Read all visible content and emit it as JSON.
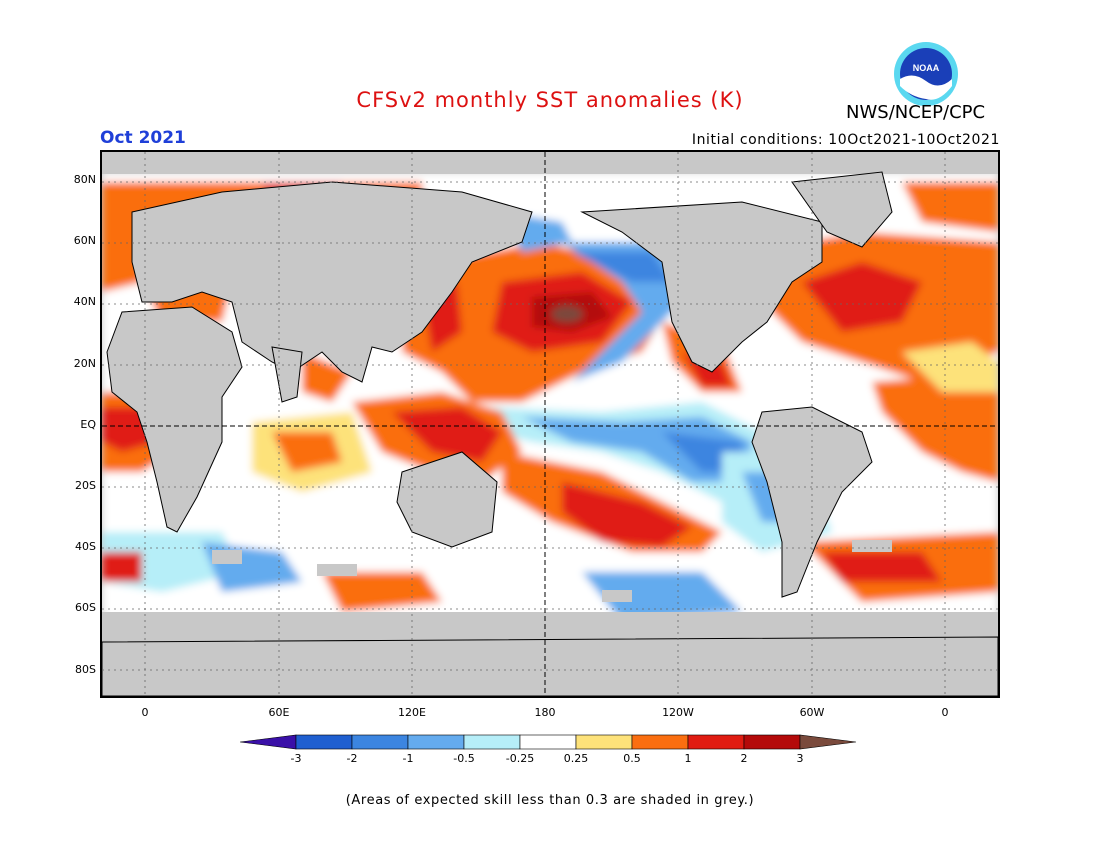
{
  "header": {
    "title": "CFSv2 monthly SST anomalies (K)",
    "month": "Oct 2021",
    "initial_conditions": "Initial conditions: 10Oct2021-10Oct2021",
    "agency": "NWS/NCEP/CPC",
    "logo_text": "NOAA"
  },
  "map": {
    "lat_labels": [
      "80N",
      "60N",
      "40N",
      "20N",
      "EQ",
      "20S",
      "40S",
      "60S",
      "80S"
    ],
    "lon_labels": [
      "0",
      "60E",
      "120E",
      "180",
      "120W",
      "60W",
      "0"
    ]
  },
  "colorbar": {
    "labels": [
      "-3",
      "-2",
      "-1",
      "-0.5",
      "-0.25",
      "0.25",
      "0.5",
      "1",
      "2",
      "3"
    ],
    "colors": [
      "#3a10a8",
      "#1f5fd0",
      "#3c85e0",
      "#64abee",
      "#b6eef8",
      "#ffffff",
      "#fde27a",
      "#fa6e10",
      "#e01c12",
      "#b40a0a",
      "#7a4a3c"
    ]
  },
  "colors": {
    "title": "#dd1111",
    "month": "#1f3fd8",
    "land": "#c8c8c8",
    "low_skill": "#c8c8c8"
  },
  "note": "(Areas of expected skill less than 0.3 are shaded in grey.)"
}
